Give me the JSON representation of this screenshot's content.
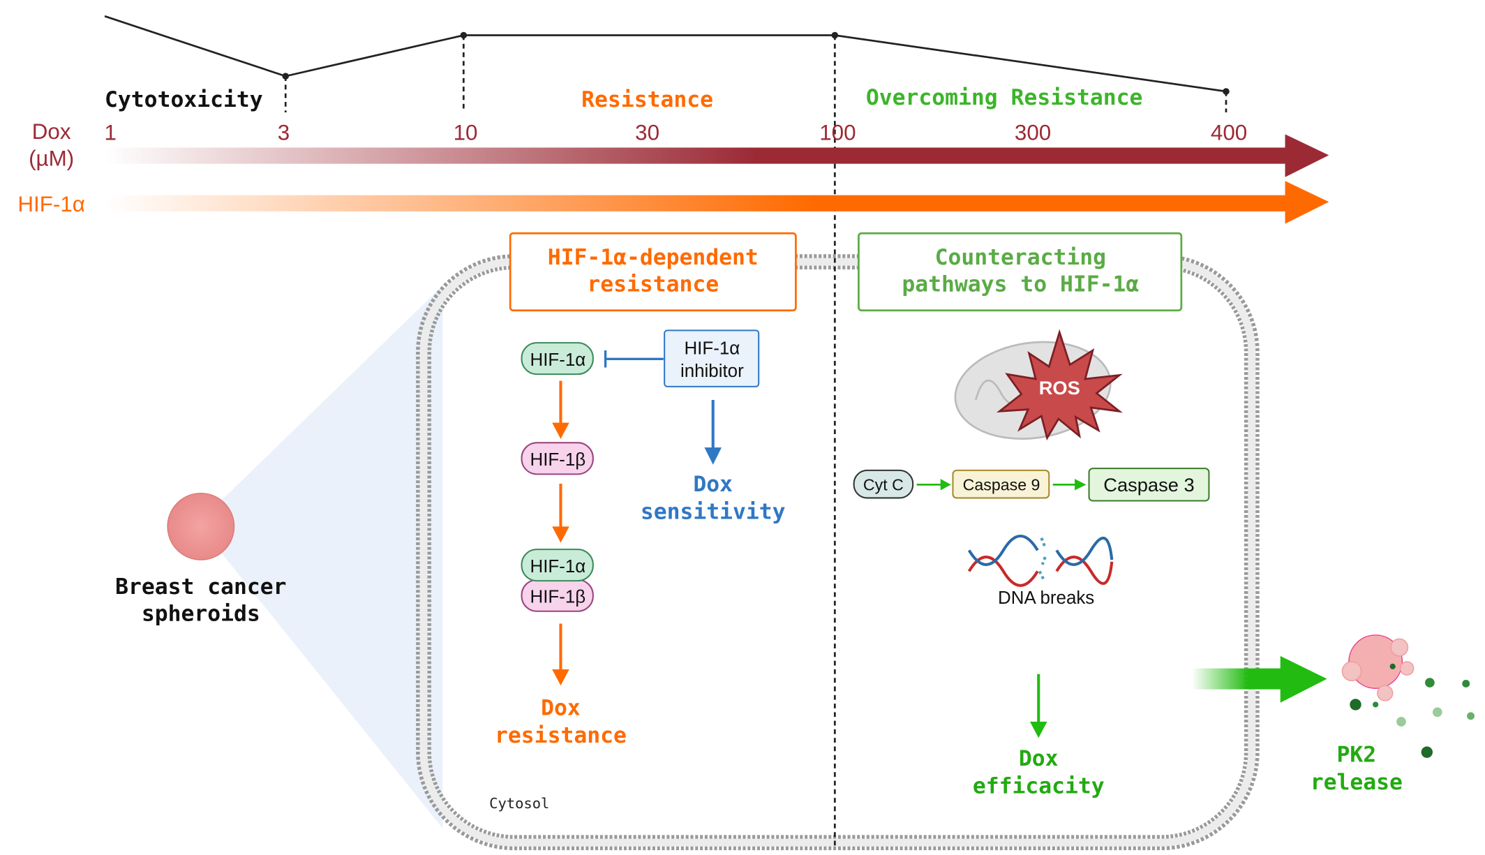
{
  "timeline": {
    "phases": {
      "cytotoxicity": "Cytotoxicity",
      "resistance": "Resistance",
      "overcoming": "Overcoming Resistance"
    },
    "dox_label_line1": "Dox",
    "dox_label_line2": "(µM)",
    "dox_ticks": [
      "1",
      "3",
      "10",
      "30",
      "100",
      "300",
      "400"
    ],
    "hif_label": "HIF-1α"
  },
  "left": {
    "spheroid_label_line1": "Breast cancer",
    "spheroid_label_line2": "spheroids"
  },
  "resistance_panel": {
    "title_line1": "HIF-1α-dependent",
    "title_line2": "resistance",
    "hif1a": "HIF-1α",
    "hif1b": "HIF-1β",
    "complex_a": "HIF-1α",
    "complex_b": "HIF-1β",
    "inhibitor_line1": "HIF-1α",
    "inhibitor_line2": "inhibitor",
    "sensitivity_line1": "Dox",
    "sensitivity_line2": "sensitivity",
    "outcome_line1": "Dox",
    "outcome_line2": "resistance",
    "cytosol": "Cytosol"
  },
  "counter_panel": {
    "title_line1": "Counteracting",
    "title_line2": "pathways to HIF-1α",
    "ros": "ROS",
    "cytc": "Cyt C",
    "casp9": "Caspase 9",
    "casp3": "Caspase 3",
    "dna": "DNA breaks",
    "outcome_line1": "Dox",
    "outcome_line2": "efficacity"
  },
  "release": {
    "line1": "PK2",
    "line2": "release"
  },
  "colors": {
    "dox": "#9b2a35",
    "hif": "#ff6a00",
    "green": "#3cb52a",
    "blue": "#2f78c4",
    "box_green": "#5aab45"
  }
}
